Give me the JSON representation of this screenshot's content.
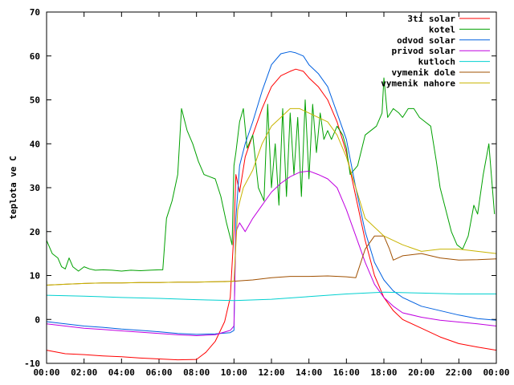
{
  "chart_data": {
    "type": "line",
    "title": "",
    "xlabel": "",
    "ylabel": "teplota ve C",
    "xlim": [
      0,
      24
    ],
    "ylim": [
      -10,
      70
    ],
    "x_ticks": [
      0,
      2,
      4,
      6,
      8,
      10,
      12,
      14,
      16,
      18,
      20,
      22,
      24
    ],
    "x_tick_labels": [
      "00:00",
      "02:00",
      "04:00",
      "06:00",
      "08:00",
      "10:00",
      "12:00",
      "14:00",
      "16:00",
      "18:00",
      "20:00",
      "22:00",
      "00:00"
    ],
    "y_ticks": [
      -10,
      0,
      10,
      20,
      30,
      40,
      50,
      60,
      70
    ],
    "y_tick_labels": [
      "-10",
      "0",
      "10",
      "20",
      "30",
      "40",
      "50",
      "60",
      "70"
    ],
    "grid": false,
    "legend_position": "top-right",
    "series": [
      {
        "name": "3ti solar",
        "color": "#ff0000",
        "points": [
          [
            0,
            -7
          ],
          [
            1,
            -7.8
          ],
          [
            2,
            -8
          ],
          [
            3,
            -8.3
          ],
          [
            4,
            -8.5
          ],
          [
            5,
            -8.8
          ],
          [
            6,
            -9
          ],
          [
            7,
            -9.2
          ],
          [
            8,
            -9.1
          ],
          [
            8.5,
            -7.5
          ],
          [
            9,
            -5
          ],
          [
            9.5,
            -0.5
          ],
          [
            9.8,
            5
          ],
          [
            10,
            20
          ],
          [
            10.1,
            33
          ],
          [
            10.3,
            29
          ],
          [
            10.6,
            37
          ],
          [
            11,
            42
          ],
          [
            11.5,
            48
          ],
          [
            12,
            53
          ],
          [
            12.5,
            55.5
          ],
          [
            13,
            56.5
          ],
          [
            13.3,
            57
          ],
          [
            13.7,
            56.5
          ],
          [
            14,
            55
          ],
          [
            14.5,
            53
          ],
          [
            15,
            50
          ],
          [
            15.5,
            45
          ],
          [
            16,
            38
          ],
          [
            16.5,
            28
          ],
          [
            17,
            18
          ],
          [
            17.5,
            10
          ],
          [
            18,
            5
          ],
          [
            18.5,
            2
          ],
          [
            19,
            0
          ],
          [
            20,
            -2
          ],
          [
            21,
            -4
          ],
          [
            22,
            -5.5
          ],
          [
            23,
            -6.3
          ],
          [
            24,
            -7
          ]
        ]
      },
      {
        "name": "kotel",
        "color": "#00a000",
        "points": [
          [
            0,
            18
          ],
          [
            0.3,
            15
          ],
          [
            0.6,
            14
          ],
          [
            0.8,
            12
          ],
          [
            1,
            11.5
          ],
          [
            1.2,
            14
          ],
          [
            1.4,
            12
          ],
          [
            1.7,
            11
          ],
          [
            2,
            12
          ],
          [
            2.3,
            11.5
          ],
          [
            2.6,
            11.2
          ],
          [
            3,
            11.3
          ],
          [
            3.5,
            11.2
          ],
          [
            4,
            11
          ],
          [
            4.5,
            11.2
          ],
          [
            5,
            11.1
          ],
          [
            5.5,
            11.2
          ],
          [
            6,
            11.3
          ],
          [
            6.2,
            11.3
          ],
          [
            6.4,
            23
          ],
          [
            6.7,
            27
          ],
          [
            7,
            33
          ],
          [
            7.2,
            48
          ],
          [
            7.5,
            43
          ],
          [
            7.8,
            40
          ],
          [
            8.1,
            36
          ],
          [
            8.4,
            33
          ],
          [
            8.7,
            32.5
          ],
          [
            9,
            32
          ],
          [
            9.3,
            28
          ],
          [
            9.6,
            22
          ],
          [
            9.9,
            17
          ],
          [
            10,
            35
          ],
          [
            10.1,
            38
          ],
          [
            10.3,
            45
          ],
          [
            10.5,
            48
          ],
          [
            10.7,
            39
          ],
          [
            11,
            42
          ],
          [
            11.3,
            30
          ],
          [
            11.6,
            27
          ],
          [
            11.8,
            49
          ],
          [
            12,
            30
          ],
          [
            12.2,
            40
          ],
          [
            12.4,
            26
          ],
          [
            12.6,
            48
          ],
          [
            12.8,
            28
          ],
          [
            13,
            47
          ],
          [
            13.2,
            33
          ],
          [
            13.4,
            46
          ],
          [
            13.6,
            28
          ],
          [
            13.8,
            50
          ],
          [
            14,
            32
          ],
          [
            14.2,
            49
          ],
          [
            14.4,
            38
          ],
          [
            14.6,
            47
          ],
          [
            14.8,
            41
          ],
          [
            15,
            43
          ],
          [
            15.2,
            41
          ],
          [
            15.5,
            44
          ],
          [
            15.8,
            42
          ],
          [
            16,
            39
          ],
          [
            16.2,
            33
          ],
          [
            16.6,
            35
          ],
          [
            17,
            42
          ],
          [
            17.3,
            43
          ],
          [
            17.6,
            44
          ],
          [
            17.9,
            47
          ],
          [
            18,
            55
          ],
          [
            18.2,
            46
          ],
          [
            18.5,
            48
          ],
          [
            18.8,
            47
          ],
          [
            19,
            46
          ],
          [
            19.3,
            48
          ],
          [
            19.6,
            48
          ],
          [
            19.9,
            46
          ],
          [
            20.2,
            45
          ],
          [
            20.5,
            44
          ],
          [
            20.8,
            36
          ],
          [
            21,
            30
          ],
          [
            21.3,
            25
          ],
          [
            21.6,
            20
          ],
          [
            21.9,
            17
          ],
          [
            22.2,
            16
          ],
          [
            22.5,
            19
          ],
          [
            22.8,
            26
          ],
          [
            23,
            24
          ],
          [
            23.3,
            33
          ],
          [
            23.6,
            40
          ],
          [
            23.9,
            24
          ]
        ]
      },
      {
        "name": "odvod solar",
        "color": "#0060e0",
        "points": [
          [
            0,
            -0.5
          ],
          [
            1,
            -1
          ],
          [
            2,
            -1.5
          ],
          [
            3,
            -1.8
          ],
          [
            4,
            -2.2
          ],
          [
            5,
            -2.5
          ],
          [
            6,
            -2.8
          ],
          [
            7,
            -3.2
          ],
          [
            8,
            -3.4
          ],
          [
            9,
            -3.3
          ],
          [
            9.8,
            -3
          ],
          [
            10,
            -2.5
          ],
          [
            10.1,
            23
          ],
          [
            10.3,
            35
          ],
          [
            10.6,
            40
          ],
          [
            11,
            45
          ],
          [
            11.5,
            52
          ],
          [
            12,
            58
          ],
          [
            12.5,
            60.5
          ],
          [
            13,
            61
          ],
          [
            13.3,
            60.7
          ],
          [
            13.7,
            60
          ],
          [
            14,
            58
          ],
          [
            14.5,
            56
          ],
          [
            15,
            53
          ],
          [
            15.5,
            47
          ],
          [
            16,
            41
          ],
          [
            16.5,
            30
          ],
          [
            17,
            20
          ],
          [
            17.5,
            13
          ],
          [
            18,
            9
          ],
          [
            18.5,
            6.5
          ],
          [
            19,
            5
          ],
          [
            20,
            3
          ],
          [
            21,
            2
          ],
          [
            22,
            1
          ],
          [
            23,
            0.2
          ],
          [
            24,
            -0.2
          ]
        ]
      },
      {
        "name": "privod solar",
        "color": "#c000e0",
        "points": [
          [
            0,
            -1
          ],
          [
            1,
            -1.5
          ],
          [
            2,
            -2
          ],
          [
            3,
            -2.3
          ],
          [
            4,
            -2.6
          ],
          [
            5,
            -2.9
          ],
          [
            6,
            -3.2
          ],
          [
            7,
            -3.5
          ],
          [
            8,
            -3.7
          ],
          [
            9,
            -3.5
          ],
          [
            9.8,
            -2.5
          ],
          [
            10,
            -1.5
          ],
          [
            10.1,
            20
          ],
          [
            10.3,
            22
          ],
          [
            10.6,
            20
          ],
          [
            11,
            23
          ],
          [
            11.5,
            26
          ],
          [
            12,
            29
          ],
          [
            12.5,
            31
          ],
          [
            13,
            32.5
          ],
          [
            13.5,
            33.5
          ],
          [
            14,
            33.8
          ],
          [
            14.5,
            33
          ],
          [
            15,
            32
          ],
          [
            15.5,
            30
          ],
          [
            16,
            25
          ],
          [
            16.5,
            19
          ],
          [
            17,
            13
          ],
          [
            17.5,
            8
          ],
          [
            18,
            5
          ],
          [
            18.5,
            3
          ],
          [
            19,
            1.5
          ],
          [
            20,
            0.5
          ],
          [
            21,
            -0.2
          ],
          [
            22,
            -0.6
          ],
          [
            23,
            -1
          ],
          [
            24,
            -1.5
          ]
        ]
      },
      {
        "name": "kutloch",
        "color": "#00d0d0",
        "points": [
          [
            0,
            5.5
          ],
          [
            2,
            5.3
          ],
          [
            4,
            5
          ],
          [
            6,
            4.8
          ],
          [
            8,
            4.5
          ],
          [
            10,
            4.3
          ],
          [
            12,
            4.6
          ],
          [
            14,
            5.2
          ],
          [
            16,
            5.8
          ],
          [
            18,
            6.2
          ],
          [
            20,
            6
          ],
          [
            22,
            5.8
          ],
          [
            24,
            5.8
          ]
        ]
      },
      {
        "name": "vymenik dole",
        "color": "#a05000",
        "points": [
          [
            0,
            7.8
          ],
          [
            1,
            8
          ],
          [
            2,
            8.2
          ],
          [
            3,
            8.3
          ],
          [
            4,
            8.3
          ],
          [
            5,
            8.4
          ],
          [
            6,
            8.4
          ],
          [
            7,
            8.5
          ],
          [
            8,
            8.5
          ],
          [
            9,
            8.6
          ],
          [
            10,
            8.7
          ],
          [
            11,
            9
          ],
          [
            12,
            9.5
          ],
          [
            13,
            9.8
          ],
          [
            14,
            9.8
          ],
          [
            15,
            9.9
          ],
          [
            16,
            9.7
          ],
          [
            16.5,
            9.5
          ],
          [
            17,
            16
          ],
          [
            17.5,
            19
          ],
          [
            18,
            19
          ],
          [
            18.3,
            16
          ],
          [
            18.5,
            13.5
          ],
          [
            19,
            14.5
          ],
          [
            20,
            15
          ],
          [
            21,
            14
          ],
          [
            22,
            13.5
          ],
          [
            23,
            13.6
          ],
          [
            24,
            13.8
          ]
        ]
      },
      {
        "name": "vymenik nahore",
        "color": "#c8b400",
        "points": [
          [
            0,
            7.8
          ],
          [
            1,
            8
          ],
          [
            2,
            8.2
          ],
          [
            3,
            8.3
          ],
          [
            4,
            8.3
          ],
          [
            5,
            8.4
          ],
          [
            6,
            8.4
          ],
          [
            7,
            8.5
          ],
          [
            8,
            8.5
          ],
          [
            9,
            8.6
          ],
          [
            9.5,
            8.6
          ],
          [
            10,
            8.7
          ],
          [
            10.2,
            25
          ],
          [
            10.5,
            30
          ],
          [
            11,
            34
          ],
          [
            11.5,
            40
          ],
          [
            12,
            44
          ],
          [
            12.5,
            46
          ],
          [
            13,
            48
          ],
          [
            13.5,
            48
          ],
          [
            14,
            47
          ],
          [
            14.5,
            46
          ],
          [
            15,
            45
          ],
          [
            15.5,
            42
          ],
          [
            16,
            37
          ],
          [
            16.5,
            30
          ],
          [
            17,
            23
          ],
          [
            17.5,
            21
          ],
          [
            18,
            19
          ],
          [
            19,
            17
          ],
          [
            20,
            15.5
          ],
          [
            21,
            16
          ],
          [
            22,
            16
          ],
          [
            23,
            15.5
          ],
          [
            24,
            15
          ]
        ]
      }
    ]
  }
}
